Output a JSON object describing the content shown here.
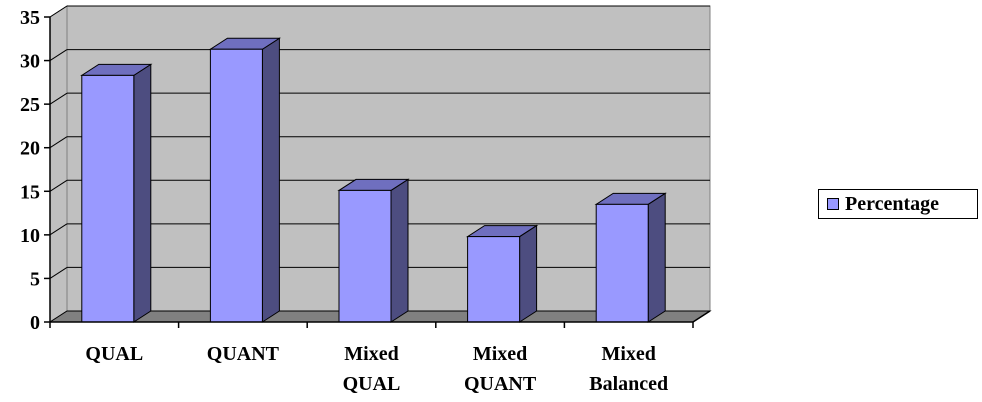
{
  "chart_data": {
    "type": "bar",
    "categories": [
      [
        "QUAL"
      ],
      [
        "QUANT"
      ],
      [
        "Mixed",
        "QUAL"
      ],
      [
        "Mixed",
        "QUANT"
      ],
      [
        "Mixed",
        "Balanced"
      ]
    ],
    "series": [
      {
        "name": "Percentage",
        "values": [
          28.3,
          31.3,
          15.1,
          9.8,
          13.5
        ]
      }
    ],
    "ylim": [
      0,
      35
    ],
    "yticks": [
      0,
      5,
      10,
      15,
      20,
      25,
      30,
      35
    ],
    "grid": true,
    "legend_position": "right",
    "title": "",
    "xlabel": "",
    "ylabel": ""
  },
  "colors": {
    "bar_front": "#9999ff",
    "bar_side": "#4d4d80",
    "bar_top": "#6f6fbf",
    "plot_back": "#c0c0c0",
    "plot_floor": "#808080"
  }
}
